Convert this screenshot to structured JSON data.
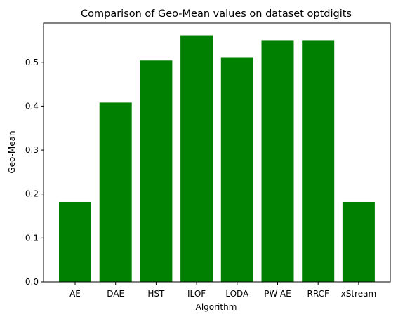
{
  "chart_data": {
    "type": "bar",
    "title": "Comparison of Geo-Mean values on dataset optdigits",
    "xlabel": "Algorithm",
    "ylabel": "Geo-Mean",
    "categories": [
      "AE",
      "DAE",
      "HST",
      "ILOF",
      "LODA",
      "PW-AE",
      "RRCF",
      "xStream"
    ],
    "values": [
      0.182,
      0.408,
      0.504,
      0.561,
      0.51,
      0.55,
      0.55,
      0.182
    ],
    "ylim": [
      0,
      0.589
    ],
    "yticks": [
      "0.0",
      "0.1",
      "0.2",
      "0.3",
      "0.4",
      "0.5"
    ],
    "bar_color": "#008000",
    "grid": false,
    "legend": "none"
  }
}
